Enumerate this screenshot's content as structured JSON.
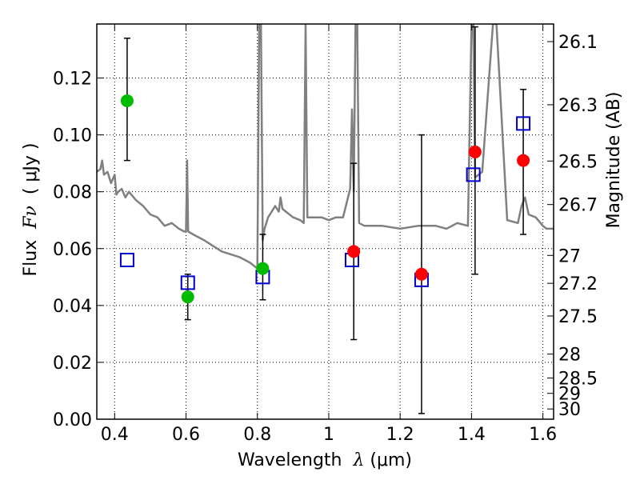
{
  "chart_data": {
    "type": "scatter",
    "title": "",
    "xlabel": {
      "prefix": "Wavelength  ",
      "symbol": "λ",
      "unit": " (μm)"
    },
    "ylabel": {
      "prefix": "Flux  ",
      "symbol": "Fν",
      "unit": "  ( μJy )"
    },
    "y2label": "Magnitude (AB)",
    "xlim": [
      0.35,
      1.63
    ],
    "ylim": [
      0.0,
      0.139
    ],
    "grid": true,
    "x_ticks": [
      0.4,
      0.6,
      0.8,
      1.0,
      1.2,
      1.4,
      1.6
    ],
    "x_tick_labels": [
      "0.4",
      "0.6",
      "0.8",
      "1",
      "1.2",
      "1.4",
      "1.6"
    ],
    "y_ticks": [
      0.0,
      0.02,
      0.04,
      0.06,
      0.08,
      0.1,
      0.12
    ],
    "y_tick_labels": [
      "0.00",
      "0.02",
      "0.04",
      "0.06",
      "0.08",
      "0.10",
      "0.12"
    ],
    "mag_ticks": [
      {
        "label": "26.1",
        "flux": 0.1328
      },
      {
        "label": "26.3",
        "flux": 0.1106
      },
      {
        "label": "26.5",
        "flux": 0.0908
      },
      {
        "label": "26.7",
        "flux": 0.0755
      },
      {
        "label": "27",
        "flux": 0.0576
      },
      {
        "label": "27.2",
        "flux": 0.0478
      },
      {
        "label": "27.5",
        "flux": 0.0363
      },
      {
        "label": "28",
        "flux": 0.0229
      },
      {
        "label": "28.5",
        "flux": 0.0145
      },
      {
        "label": "29",
        "flux": 0.0091
      },
      {
        "label": "30",
        "flux": 0.0036
      }
    ],
    "colors": {
      "green": "#00bb00",
      "red": "#ff0000",
      "box": "#0000cc",
      "error": "#000000",
      "sed": "#808080"
    },
    "series": [
      {
        "marker": "green-circle",
        "points": [
          {
            "x": 0.435,
            "y": 0.112,
            "ylo": 0.091,
            "yhi": 0.134
          },
          {
            "x": 0.605,
            "y": 0.043,
            "ylo": 0.035,
            "yhi": 0.051
          },
          {
            "x": 0.815,
            "y": 0.053,
            "ylo": 0.042,
            "yhi": 0.065
          }
        ]
      },
      {
        "marker": "red-circle",
        "points": [
          {
            "x": 1.07,
            "y": 0.059,
            "ylo": 0.028,
            "yhi": 0.09
          },
          {
            "x": 1.26,
            "y": 0.051,
            "ylo": 0.002,
            "yhi": 0.1
          },
          {
            "x": 1.41,
            "y": 0.094,
            "ylo": 0.051,
            "yhi": 0.138
          },
          {
            "x": 1.545,
            "y": 0.091,
            "ylo": 0.065,
            "yhi": 0.116
          }
        ]
      },
      {
        "marker": "blue-open-square",
        "points": [
          {
            "x": 0.435,
            "y": 0.056
          },
          {
            "x": 0.605,
            "y": 0.048
          },
          {
            "x": 0.815,
            "y": 0.05
          },
          {
            "x": 1.065,
            "y": 0.056
          },
          {
            "x": 1.26,
            "y": 0.049
          },
          {
            "x": 1.405,
            "y": 0.086
          },
          {
            "x": 1.545,
            "y": 0.104
          }
        ]
      },
      {
        "marker": "grey-line",
        "line": [
          [
            0.35,
            0.087
          ],
          [
            0.36,
            0.088
          ],
          [
            0.365,
            0.091
          ],
          [
            0.37,
            0.086
          ],
          [
            0.38,
            0.087
          ],
          [
            0.39,
            0.083
          ],
          [
            0.4,
            0.086
          ],
          [
            0.405,
            0.079
          ],
          [
            0.41,
            0.08
          ],
          [
            0.42,
            0.081
          ],
          [
            0.43,
            0.078
          ],
          [
            0.44,
            0.08
          ],
          [
            0.46,
            0.077
          ],
          [
            0.48,
            0.075
          ],
          [
            0.5,
            0.072
          ],
          [
            0.52,
            0.071
          ],
          [
            0.54,
            0.068
          ],
          [
            0.56,
            0.069
          ],
          [
            0.58,
            0.067
          ],
          [
            0.595,
            0.066
          ],
          [
            0.6,
            0.066
          ],
          [
            0.603,
            0.091
          ],
          [
            0.606,
            0.066
          ],
          [
            0.62,
            0.065
          ],
          [
            0.65,
            0.063
          ],
          [
            0.7,
            0.059
          ],
          [
            0.75,
            0.057
          ],
          [
            0.78,
            0.055
          ],
          [
            0.79,
            0.054
          ],
          [
            0.8,
            0.053
          ],
          [
            0.805,
            0.139
          ],
          [
            0.81,
            0.139
          ],
          [
            0.815,
            0.063
          ],
          [
            0.82,
            0.067
          ],
          [
            0.83,
            0.071
          ],
          [
            0.84,
            0.073
          ],
          [
            0.85,
            0.075
          ],
          [
            0.86,
            0.073
          ],
          [
            0.865,
            0.078
          ],
          [
            0.87,
            0.074
          ],
          [
            0.88,
            0.073
          ],
          [
            0.9,
            0.071
          ],
          [
            0.92,
            0.07
          ],
          [
            0.93,
            0.069
          ],
          [
            0.935,
            0.139
          ],
          [
            0.94,
            0.071
          ],
          [
            0.96,
            0.071
          ],
          [
            0.98,
            0.071
          ],
          [
            1.0,
            0.07
          ],
          [
            1.02,
            0.071
          ],
          [
            1.04,
            0.071
          ],
          [
            1.06,
            0.081
          ],
          [
            1.065,
            0.109
          ],
          [
            1.07,
            0.08
          ],
          [
            1.075,
            0.139
          ],
          [
            1.08,
            0.139
          ],
          [
            1.085,
            0.069
          ],
          [
            1.1,
            0.068
          ],
          [
            1.15,
            0.068
          ],
          [
            1.2,
            0.067
          ],
          [
            1.25,
            0.068
          ],
          [
            1.3,
            0.068
          ],
          [
            1.33,
            0.067
          ],
          [
            1.36,
            0.069
          ],
          [
            1.39,
            0.068
          ],
          [
            1.4,
            0.139
          ],
          [
            1.405,
            0.139
          ],
          [
            1.41,
            0.085
          ],
          [
            1.43,
            0.087
          ],
          [
            1.46,
            0.139
          ],
          [
            1.47,
            0.139
          ],
          [
            1.5,
            0.07
          ],
          [
            1.53,
            0.069
          ],
          [
            1.54,
            0.075
          ],
          [
            1.55,
            0.078
          ],
          [
            1.56,
            0.072
          ],
          [
            1.58,
            0.071
          ],
          [
            1.6,
            0.068
          ],
          [
            1.61,
            0.067
          ],
          [
            1.63,
            0.067
          ]
        ]
      }
    ]
  }
}
